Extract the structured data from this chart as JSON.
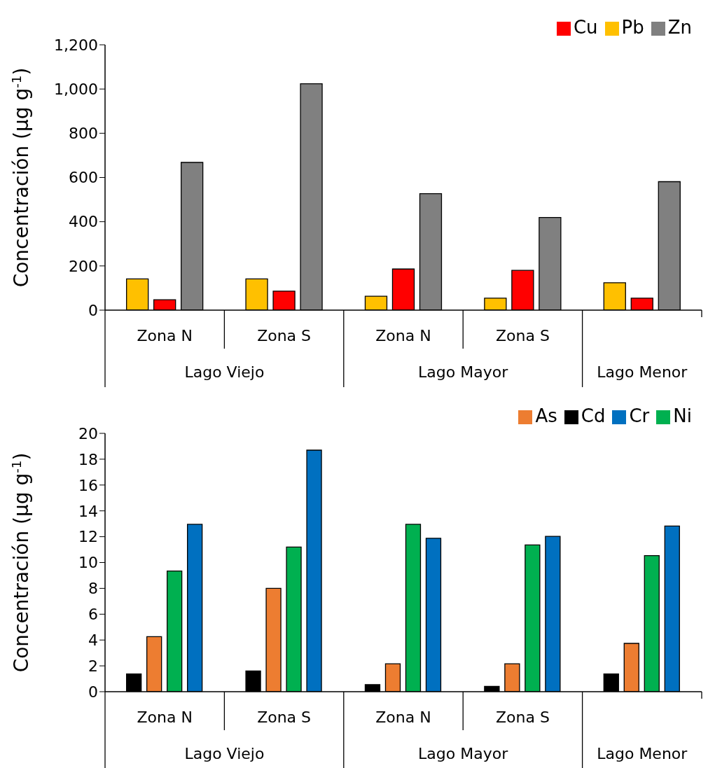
{
  "chart_data": [
    {
      "type": "bar",
      "ylabel": "Concentración (µg g$^{-1}$)",
      "categories": [
        "Zona N",
        "Zona S",
        "Zona N",
        "Zona S",
        null
      ],
      "annotations": [
        "Lago Viejo",
        "Lago Mayor",
        "Lago Menor"
      ],
      "series": [
        {
          "name": "Pb",
          "color": "#ffc000",
          "values": [
            141,
            141,
            63,
            54,
            124
          ]
        },
        {
          "name": "Cu",
          "color": "#ff0000",
          "values": [
            47,
            86,
            186,
            180,
            54
          ]
        },
        {
          "name": "Zn",
          "color": "#808080",
          "values": [
            668,
            1024,
            527,
            419,
            581
          ]
        }
      ],
      "ylim": [
        0,
        1200
      ],
      "yticks": [
        0,
        200,
        400,
        600,
        800,
        {
          "value": 1000,
          "label": "1,000"
        },
        {
          "value": 1200,
          "label": "1,200"
        }
      ],
      "legend": "top right"
    },
    {
      "type": "bar",
      "ylabel": "Concentración (µg g$^{-1}$)",
      "categories": [
        "Zona N",
        "Zona S",
        "Zona N",
        "Zona S",
        null
      ],
      "annotations": [
        "Lago Viejo",
        "Lago Mayor",
        "Lago Menor"
      ],
      "series": [
        {
          "name": "Cd",
          "color": "#000000",
          "values": [
            1.37,
            1.6,
            0.55,
            0.41,
            1.37
          ]
        },
        {
          "name": "As",
          "color": "#ed7d31",
          "values": [
            4.26,
            8.0,
            2.16,
            2.16,
            3.74
          ]
        },
        {
          "name": "Ni",
          "color": "#00b050",
          "values": [
            9.34,
            11.2,
            12.96,
            11.36,
            10.54
          ]
        },
        {
          "name": "Cr",
          "color": "#0070c0",
          "values": [
            12.96,
            18.7,
            11.88,
            12.03,
            12.82
          ]
        }
      ],
      "ylim": [
        0,
        20
      ],
      "yticks": [
        0,
        2,
        4,
        6,
        8,
        10,
        12,
        14,
        16,
        18,
        20
      ],
      "legend": "top right"
    }
  ]
}
